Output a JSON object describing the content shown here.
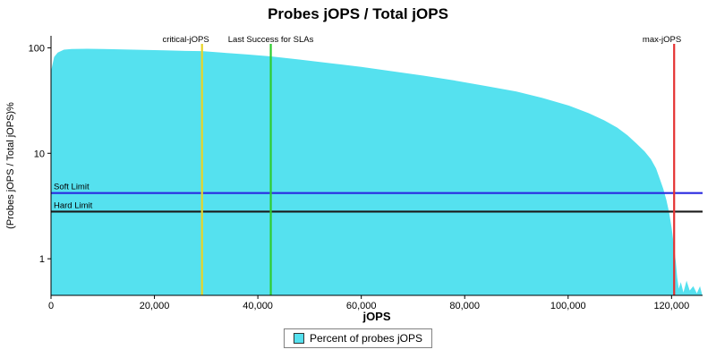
{
  "title": "Probes jOPS / Total jOPS",
  "chart_data": {
    "type": "area",
    "title": "Probes jOPS / Total jOPS",
    "xlabel": "jOPS",
    "ylabel": "(Probes jOPS / Total jOPS)%",
    "y_scale": "log",
    "grid": false,
    "xlim": [
      0,
      126000
    ],
    "ylim": [
      0.45,
      130
    ],
    "x_ticks": [
      {
        "label": "0",
        "value": 0
      },
      {
        "label": "20,000",
        "value": 20000
      },
      {
        "label": "40,000",
        "value": 40000
      },
      {
        "label": "60,000",
        "value": 60000
      },
      {
        "label": "80,000",
        "value": 80000
      },
      {
        "label": "100,000",
        "value": 100000
      },
      {
        "label": "120,000",
        "value": 120000
      }
    ],
    "y_ticks": [
      {
        "label": "100",
        "value": 100
      },
      {
        "label": "10",
        "value": 10
      },
      {
        "label": "1",
        "value": 1
      }
    ],
    "series": [
      {
        "name": "Percent of probes jOPS",
        "color": "#55E1EF",
        "points": [
          [
            0,
            60
          ],
          [
            600,
            82
          ],
          [
            1300,
            90
          ],
          [
            2500,
            96
          ],
          [
            4000,
            97.5
          ],
          [
            7000,
            98
          ],
          [
            10000,
            97.5
          ],
          [
            14000,
            96.5
          ],
          [
            18000,
            95.5
          ],
          [
            22000,
            94.5
          ],
          [
            26000,
            93.5
          ],
          [
            29200,
            93
          ],
          [
            33000,
            90
          ],
          [
            38000,
            86.5
          ],
          [
            42500,
            83
          ],
          [
            48000,
            77.5
          ],
          [
            54000,
            71.5
          ],
          [
            60000,
            66
          ],
          [
            66000,
            60
          ],
          [
            72000,
            54.5
          ],
          [
            78000,
            49
          ],
          [
            84000,
            43.5
          ],
          [
            90000,
            38.5
          ],
          [
            95000,
            33.5
          ],
          [
            100000,
            28.5
          ],
          [
            104000,
            24
          ],
          [
            107000,
            20.5
          ],
          [
            109500,
            17.5
          ],
          [
            111500,
            14.8
          ],
          [
            113200,
            12.4
          ],
          [
            114800,
            10.4
          ],
          [
            116000,
            8.8
          ],
          [
            117000,
            7.2
          ],
          [
            117800,
            5.6
          ],
          [
            118400,
            4.6
          ],
          [
            119000,
            3.6
          ],
          [
            119500,
            2.8
          ],
          [
            120000,
            2.0
          ],
          [
            120400,
            1.4
          ],
          [
            120800,
            0.95
          ],
          [
            121100,
            0.66
          ],
          [
            121400,
            0.52
          ],
          [
            121800,
            0.6
          ],
          [
            122300,
            0.48
          ],
          [
            122900,
            0.62
          ],
          [
            123500,
            0.5
          ],
          [
            124200,
            0.55
          ],
          [
            124900,
            0.47
          ],
          [
            125500,
            0.55
          ],
          [
            125900,
            0.46
          ]
        ]
      }
    ],
    "vlines": [
      {
        "label": "critical-jOPS",
        "x": 29200,
        "color": "#E8D428",
        "anchor": "end"
      },
      {
        "label": "Last Success for SLAs",
        "x": 42500,
        "color": "#2FCC2F",
        "anchor": "middle"
      },
      {
        "label": "max-jOPS",
        "x": 120500,
        "color": "#E53232",
        "anchor": "end"
      }
    ],
    "hlines": [
      {
        "label": "Soft Limit",
        "y": 4.2,
        "color": "#2A2AE0"
      },
      {
        "label": "Hard Limit",
        "y": 2.8,
        "color": "#1A1A1A"
      }
    ],
    "legend": {
      "label": "Percent of probes jOPS",
      "position": "bottom-center"
    }
  }
}
